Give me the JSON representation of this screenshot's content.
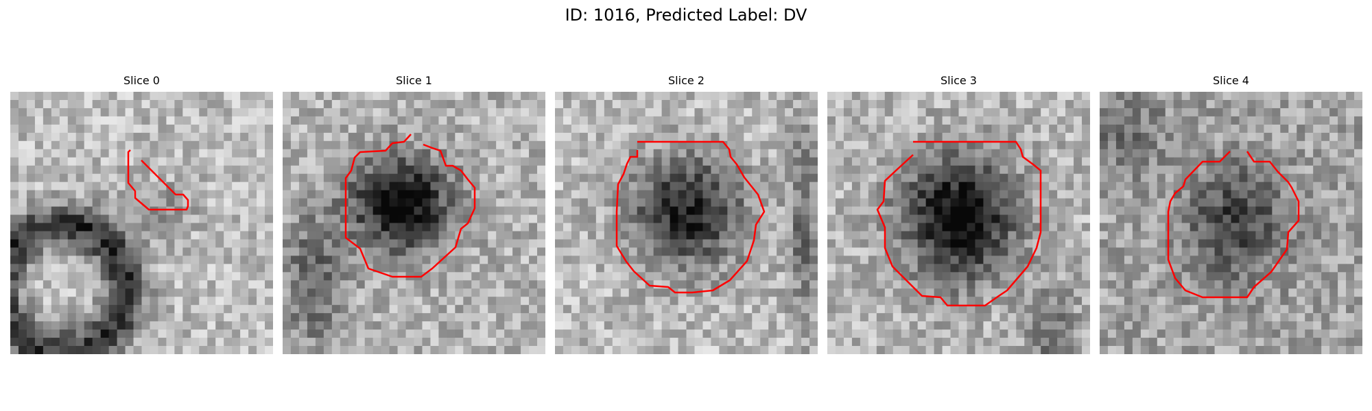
{
  "figure": {
    "title": "ID: 1016, Predicted Label: DV"
  },
  "panels": [
    {
      "title": "Slice 0",
      "contour_color": "#ff0000"
    },
    {
      "title": "Slice 1",
      "contour_color": "#ff0000"
    },
    {
      "title": "Slice 2",
      "contour_color": "#ff0000"
    },
    {
      "title": "Slice 3",
      "contour_color": "#ff0000"
    },
    {
      "title": "Slice 4",
      "contour_color": "#ff0000"
    }
  ]
}
